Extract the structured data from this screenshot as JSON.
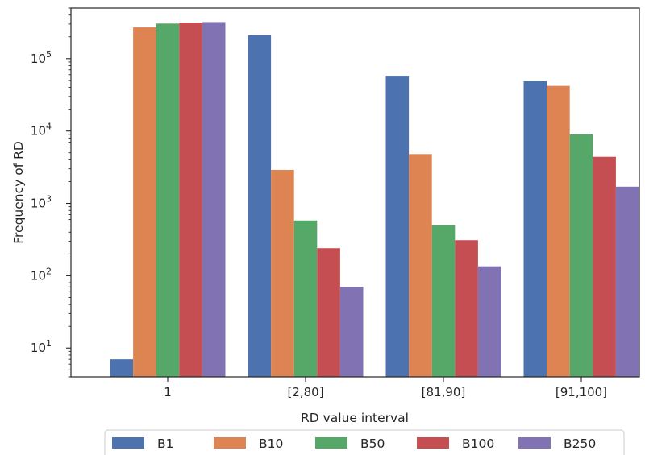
{
  "chart_data": {
    "type": "bar",
    "title": "",
    "xlabel": "RD value interval",
    "ylabel": "Frequency of RD",
    "yscale": "log",
    "ylim": [
      4,
      500000
    ],
    "categories": [
      "1",
      "[2,80]",
      "[81,90]",
      "[91,100]"
    ],
    "series": [
      {
        "name": "B1",
        "color": "#4c72b0",
        "values": [
          7,
          210000,
          58000,
          49000
        ]
      },
      {
        "name": "B10",
        "color": "#dd8452",
        "values": [
          270000,
          2900,
          4800,
          42000
        ]
      },
      {
        "name": "B50",
        "color": "#55a868",
        "values": [
          305000,
          580,
          500,
          9000
        ]
      },
      {
        "name": "B100",
        "color": "#c44e52",
        "values": [
          315000,
          240,
          310,
          4400
        ]
      },
      {
        "name": "B250",
        "color": "#8172b3",
        "values": [
          320000,
          70,
          135,
          1700
        ]
      }
    ],
    "y_ticks": [
      {
        "value": 10,
        "base": "10",
        "exp": "1"
      },
      {
        "value": 100,
        "base": "10",
        "exp": "2"
      },
      {
        "value": 1000,
        "base": "10",
        "exp": "3"
      },
      {
        "value": 10000,
        "base": "10",
        "exp": "4"
      },
      {
        "value": 100000,
        "base": "10",
        "exp": "5"
      }
    ],
    "grid": false,
    "legend_position": "bottom"
  }
}
